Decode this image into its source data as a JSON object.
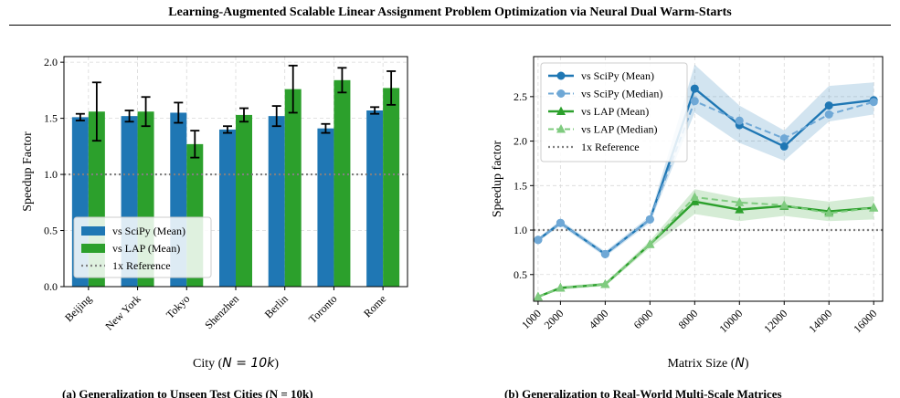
{
  "header": {
    "title": "Learning-Augmented Scalable Linear Assignment Problem Optimization via Neural Dual Warm-Starts"
  },
  "caption": {
    "left": "(a) Generalization to Unseen Test Cities (N = 10k)",
    "right": "(b) Generalization to Real-World Multi-Scale Matrices"
  },
  "colors": {
    "blue": "#1f77b4",
    "green": "#2ca02c",
    "ref": "#808080"
  },
  "chart_data": [
    {
      "type": "bar",
      "title": "",
      "xlabel": "City (N = 10k)",
      "ylabel": "Speedup Factor",
      "ylim": [
        0,
        2.05
      ],
      "yticks": [
        "0.0",
        "0.5",
        "1.0",
        "1.5",
        "2.0"
      ],
      "categories": [
        "Beijing",
        "New York",
        "Tokyo",
        "Shenzhen",
        "Berlin",
        "Toronto",
        "Rome"
      ],
      "series": [
        {
          "name": "vs SciPy (Mean)",
          "color": "#1f77b4",
          "values": [
            1.51,
            1.52,
            1.55,
            1.4,
            1.52,
            1.41,
            1.57
          ],
          "errors": [
            0.03,
            0.05,
            0.09,
            0.03,
            0.09,
            0.04,
            0.03
          ]
        },
        {
          "name": "vs LAP (Mean)",
          "color": "#2ca02c",
          "values": [
            1.56,
            1.56,
            1.27,
            1.53,
            1.76,
            1.84,
            1.77
          ],
          "errors": [
            0.26,
            0.13,
            0.12,
            0.06,
            0.21,
            0.11,
            0.15
          ]
        }
      ],
      "reference": {
        "name": "1x Reference",
        "value": 1.0
      },
      "legend": "lower-left",
      "grid": true
    },
    {
      "type": "line",
      "title": "",
      "xlabel": "Matrix Size (N)",
      "ylabel": "Speedup factor",
      "xlim": [
        800,
        16400
      ],
      "ylim": [
        0.2,
        2.95
      ],
      "x": [
        1000,
        2000,
        4000,
        6000,
        8000,
        10000,
        12000,
        14000,
        16000
      ],
      "xticks": [
        "1000",
        "2000",
        "4000",
        "6000",
        "8000",
        "10000",
        "12000",
        "14000",
        "16000"
      ],
      "yticks": [
        "0.5",
        "1.0",
        "1.5",
        "2.0",
        "2.5"
      ],
      "series": [
        {
          "name": "vs SciPy (Mean)",
          "color": "#1f77b4",
          "style": "solid",
          "marker": "circle",
          "values": [
            0.89,
            1.08,
            0.73,
            1.12,
            2.59,
            2.18,
            1.94,
            2.4,
            2.46
          ],
          "band_low": [
            0.87,
            1.05,
            0.7,
            1.08,
            2.32,
            1.98,
            1.78,
            2.22,
            2.3
          ],
          "band_high": [
            0.91,
            1.11,
            0.76,
            1.16,
            2.86,
            2.4,
            2.12,
            2.62,
            2.66
          ]
        },
        {
          "name": "vs SciPy (Median)",
          "color": "#6fa8d6",
          "style": "dashed",
          "marker": "circle",
          "values": [
            0.89,
            1.08,
            0.73,
            1.12,
            2.45,
            2.23,
            2.03,
            2.3,
            2.44
          ]
        },
        {
          "name": "vs LAP (Mean)",
          "color": "#2ca02c",
          "style": "solid",
          "marker": "triangle",
          "values": [
            0.25,
            0.35,
            0.39,
            0.84,
            1.32,
            1.23,
            1.27,
            1.21,
            1.25
          ],
          "band_low": [
            0.24,
            0.33,
            0.37,
            0.8,
            1.18,
            1.1,
            1.16,
            1.1,
            1.12
          ],
          "band_high": [
            0.26,
            0.37,
            0.41,
            0.88,
            1.46,
            1.36,
            1.38,
            1.32,
            1.38
          ]
        },
        {
          "name": "vs LAP (Median)",
          "color": "#7fcb7f",
          "style": "dashed",
          "marker": "triangle",
          "values": [
            0.25,
            0.35,
            0.39,
            0.84,
            1.37,
            1.31,
            1.28,
            1.19,
            1.25
          ]
        }
      ],
      "reference": {
        "name": "1x Reference",
        "value": 1.0
      },
      "legend": "upper-left",
      "grid": true
    }
  ]
}
